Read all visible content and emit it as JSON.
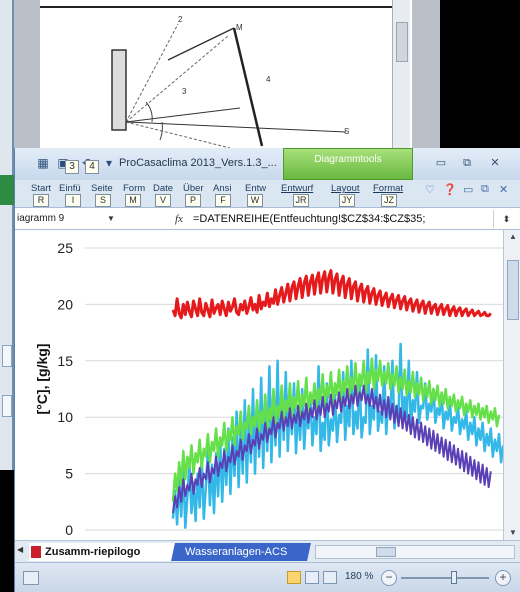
{
  "background_document": {
    "diagram_labels": [
      "2",
      "M",
      "4",
      "3",
      "S"
    ]
  },
  "excel": {
    "title": "ProCasaclima 2013_Vers.1.3_...",
    "contextual_tab": "Diagrammtools",
    "quick_access_keys": [
      "3",
      "4"
    ],
    "ribbon_tabs": [
      {
        "label": "Start",
        "key": "R"
      },
      {
        "label": "Einfü",
        "key": "I"
      },
      {
        "label": "Seite",
        "key": "S"
      },
      {
        "label": "Form",
        "key": "M"
      },
      {
        "label": "Date",
        "key": "V"
      },
      {
        "label": "Über",
        "key": "P"
      },
      {
        "label": "Ansi",
        "key": "F"
      },
      {
        "label": "Entw",
        "key": "W"
      },
      {
        "label": "Entwurf",
        "key": "JR"
      },
      {
        "label": "Layout",
        "key": "JY"
      },
      {
        "label": "Format",
        "key": "JZ"
      }
    ],
    "name_box": "iagramm 9",
    "fx_label": "fx",
    "formula": "=DATENREIHE(Entfeuchtung!$CZ$34:$CZ$35;",
    "sheet_tabs": {
      "active": "Zusamm-riepilogo",
      "other": "Wasseranlagen-ACS"
    },
    "zoom": "180 %"
  },
  "chart_data": {
    "type": "line",
    "ylabel": "[°C],  [g/kg]",
    "ylim": [
      0,
      25
    ],
    "yticks": [
      0,
      5,
      10,
      15,
      20,
      25
    ],
    "grid": true,
    "n_points": 160,
    "series": [
      {
        "color": "#e41a1c",
        "values": [
          19.5,
          19.0,
          20.5,
          19.2,
          18.8,
          20.0,
          19.1,
          20.2,
          19.4,
          18.9,
          20.3,
          19.6,
          19.0,
          20.5,
          19.3,
          19.0,
          20.1,
          19.5,
          18.9,
          20.4,
          19.2,
          19.7,
          20.0,
          19.1,
          20.3,
          19.6,
          19.0,
          20.2,
          19.4,
          19.8,
          20.5,
          19.3,
          19.1,
          20.0,
          19.5,
          20.3,
          19.2,
          19.8,
          20.6,
          19.5,
          20.0,
          19.3,
          20.8,
          19.6,
          20.2,
          19.9,
          21.0,
          19.8,
          20.5,
          20.1,
          21.3,
          20.0,
          20.8,
          21.5,
          20.2,
          21.0,
          21.8,
          20.3,
          21.5,
          22.0,
          20.5,
          21.6,
          22.3,
          20.6,
          21.9,
          22.5,
          20.8,
          22.0,
          22.6,
          20.9,
          22.2,
          22.8,
          21.0,
          22.3,
          22.9,
          21.1,
          22.4,
          23.0,
          21.0,
          22.2,
          22.7,
          20.8,
          22.0,
          22.5,
          20.6,
          21.8,
          22.3,
          20.5,
          21.6,
          22.0,
          20.3,
          21.4,
          21.8,
          20.2,
          21.2,
          21.6,
          20.1,
          21.0,
          21.4,
          20.0,
          20.8,
          21.2,
          19.9,
          20.6,
          21.0,
          19.8,
          20.5,
          20.9,
          19.7,
          20.4,
          20.8,
          19.6,
          20.3,
          20.7,
          19.5,
          20.2,
          20.5,
          19.4,
          20.0,
          20.4,
          19.3,
          20.0,
          20.3,
          19.2,
          19.9,
          20.2,
          19.2,
          19.8,
          20.0,
          19.1,
          19.7,
          20.0,
          19.1,
          19.6,
          19.9,
          19.0,
          19.5,
          19.8,
          19.0,
          19.5,
          19.7,
          19.0,
          19.4,
          19.6,
          19.0,
          19.3,
          19.5,
          19.0,
          19.2,
          19.4,
          19.0,
          19.1,
          19.3,
          19.0,
          19.0,
          19.2
        ]
      },
      {
        "color": "#33b8e8",
        "values": [
          1.0,
          3.5,
          0.5,
          4.8,
          1.2,
          5.5,
          0.2,
          3.0,
          6.0,
          1.5,
          4.2,
          0.8,
          5.0,
          2.0,
          6.5,
          1.0,
          3.8,
          7.0,
          2.2,
          5.8,
          1.5,
          6.8,
          3.0,
          8.0,
          2.5,
          7.2,
          4.0,
          9.0,
          3.2,
          8.2,
          4.8,
          10.5,
          3.8,
          9.2,
          5.0,
          11.5,
          4.2,
          10.0,
          6.0,
          12.5,
          5.0,
          10.8,
          6.5,
          13.5,
          5.5,
          11.5,
          7.0,
          14.5,
          6.0,
          12.0,
          7.5,
          15.0,
          6.5,
          12.5,
          8.0,
          14.0,
          7.0,
          11.5,
          8.5,
          13.0,
          6.8,
          11.0,
          8.0,
          12.5,
          7.2,
          10.5,
          9.0,
          12.0,
          7.5,
          10.0,
          8.5,
          14.5,
          7.0,
          9.5,
          8.0,
          13.0,
          7.5,
          9.8,
          8.8,
          12.0,
          7.8,
          10.2,
          9.5,
          14.0,
          8.0,
          11.0,
          9.2,
          15.0,
          8.5,
          10.5,
          9.0,
          13.5,
          8.2,
          10.0,
          9.5,
          16.0,
          8.5,
          11.0,
          9.8,
          15.5,
          8.8,
          10.5,
          9.5,
          14.5,
          8.5,
          11.5,
          10.0,
          15.0,
          9.0,
          11.0,
          10.2,
          16.5,
          9.5,
          11.8,
          10.0,
          15.0,
          9.2,
          11.5,
          10.5,
          14.0,
          9.5,
          11.0,
          10.8,
          13.0,
          9.8,
          11.2,
          10.5,
          12.5,
          9.5,
          10.8,
          10.2,
          12.0,
          9.0,
          10.5,
          9.8,
          11.5,
          8.8,
          10.0,
          9.5,
          11.0,
          8.5,
          9.8,
          9.0,
          10.5,
          8.0,
          9.5,
          8.5,
          10.0,
          7.5,
          9.0,
          8.0,
          9.5,
          7.0,
          8.5,
          7.5,
          9.0,
          6.5,
          8.0,
          7.0,
          8.5,
          6.0,
          7.5
        ]
      },
      {
        "color": "#66e04a",
        "values": [
          2.5,
          5.0,
          3.5,
          6.0,
          4.0,
          7.0,
          4.5,
          6.5,
          5.5,
          7.5,
          5.0,
          6.8,
          6.0,
          8.0,
          5.5,
          7.2,
          6.5,
          8.5,
          6.0,
          7.8,
          7.0,
          9.0,
          6.5,
          8.2,
          7.5,
          9.5,
          7.0,
          8.8,
          8.0,
          10.0,
          7.5,
          9.2,
          8.5,
          10.5,
          8.0,
          9.5,
          9.0,
          11.0,
          8.5,
          10.0,
          9.2,
          11.5,
          8.8,
          10.5,
          9.5,
          12.0,
          9.0,
          10.8,
          9.8,
          12.5,
          9.5,
          11.0,
          10.0,
          12.8,
          9.8,
          11.5,
          10.5,
          13.0,
          10.0,
          11.8,
          10.8,
          13.2,
          10.2,
          12.0,
          11.0,
          13.5,
          10.5,
          12.2,
          11.2,
          13.0,
          10.8,
          12.5,
          11.5,
          13.8,
          11.0,
          12.8,
          11.8,
          14.0,
          11.2,
          13.0,
          12.0,
          14.2,
          11.5,
          13.2,
          12.2,
          14.5,
          11.8,
          13.5,
          12.5,
          14.8,
          12.0,
          13.8,
          12.8,
          15.0,
          12.2,
          14.0,
          13.0,
          15.2,
          12.5,
          14.2,
          13.2,
          15.0,
          12.8,
          14.0,
          13.0,
          14.8,
          12.5,
          13.8,
          12.8,
          14.5,
          12.2,
          13.5,
          12.5,
          14.2,
          12.0,
          13.2,
          12.2,
          14.0,
          11.8,
          13.0,
          12.0,
          13.5,
          11.5,
          12.8,
          11.8,
          13.2,
          11.2,
          12.5,
          11.5,
          12.8,
          11.0,
          12.2,
          11.2,
          12.5,
          10.8,
          11.8,
          11.0,
          12.0,
          10.5,
          11.5,
          10.8,
          11.8,
          10.2,
          11.2,
          10.5,
          11.5,
          10.0,
          11.0,
          10.2,
          11.2,
          9.8,
          10.8,
          10.0,
          11.0,
          9.5,
          10.5,
          9.8,
          10.8,
          9.2,
          10.2
        ]
      },
      {
        "color": "#5a3fb5",
        "values": [
          1.5,
          3.0,
          2.0,
          3.8,
          2.5,
          4.5,
          3.0,
          4.0,
          3.5,
          5.0,
          3.2,
          4.5,
          4.0,
          5.5,
          3.8,
          5.0,
          4.5,
          6.0,
          4.2,
          5.5,
          5.0,
          6.5,
          4.8,
          6.0,
          5.5,
          7.0,
          5.2,
          6.5,
          6.0,
          7.5,
          5.8,
          7.0,
          6.5,
          8.0,
          6.2,
          7.5,
          7.0,
          8.5,
          6.8,
          8.0,
          7.5,
          9.0,
          7.2,
          8.5,
          8.0,
          9.5,
          7.8,
          9.0,
          8.5,
          10.0,
          8.2,
          9.5,
          9.0,
          10.5,
          8.8,
          10.0,
          9.2,
          10.8,
          9.0,
          10.2,
          9.5,
          11.0,
          9.2,
          10.5,
          9.8,
          11.2,
          9.5,
          10.8,
          10.0,
          11.5,
          9.8,
          11.0,
          10.2,
          11.8,
          10.0,
          11.2,
          10.5,
          12.0,
          10.2,
          11.5,
          10.8,
          12.2,
          10.5,
          11.8,
          11.0,
          12.5,
          10.8,
          12.0,
          11.2,
          12.8,
          11.0,
          12.2,
          11.5,
          12.8,
          11.2,
          12.0,
          11.0,
          12.5,
          10.8,
          11.8,
          10.5,
          12.0,
          10.2,
          11.5,
          10.0,
          11.8,
          9.8,
          11.2,
          9.5,
          11.0,
          9.2,
          10.8,
          9.0,
          10.5,
          8.8,
          10.2,
          8.5,
          10.0,
          8.2,
          9.8,
          8.0,
          9.5,
          7.8,
          9.2,
          7.5,
          9.0,
          7.2,
          8.8,
          7.0,
          8.5,
          6.8,
          8.2,
          6.5,
          8.0,
          6.2,
          7.8,
          6.0,
          7.5,
          5.8,
          7.2,
          5.5,
          7.0,
          5.2,
          6.8,
          5.0,
          6.5,
          4.8,
          6.2,
          4.5,
          6.0,
          4.2,
          5.8,
          4.0,
          5.5,
          3.8,
          5.2
        ]
      }
    ]
  }
}
